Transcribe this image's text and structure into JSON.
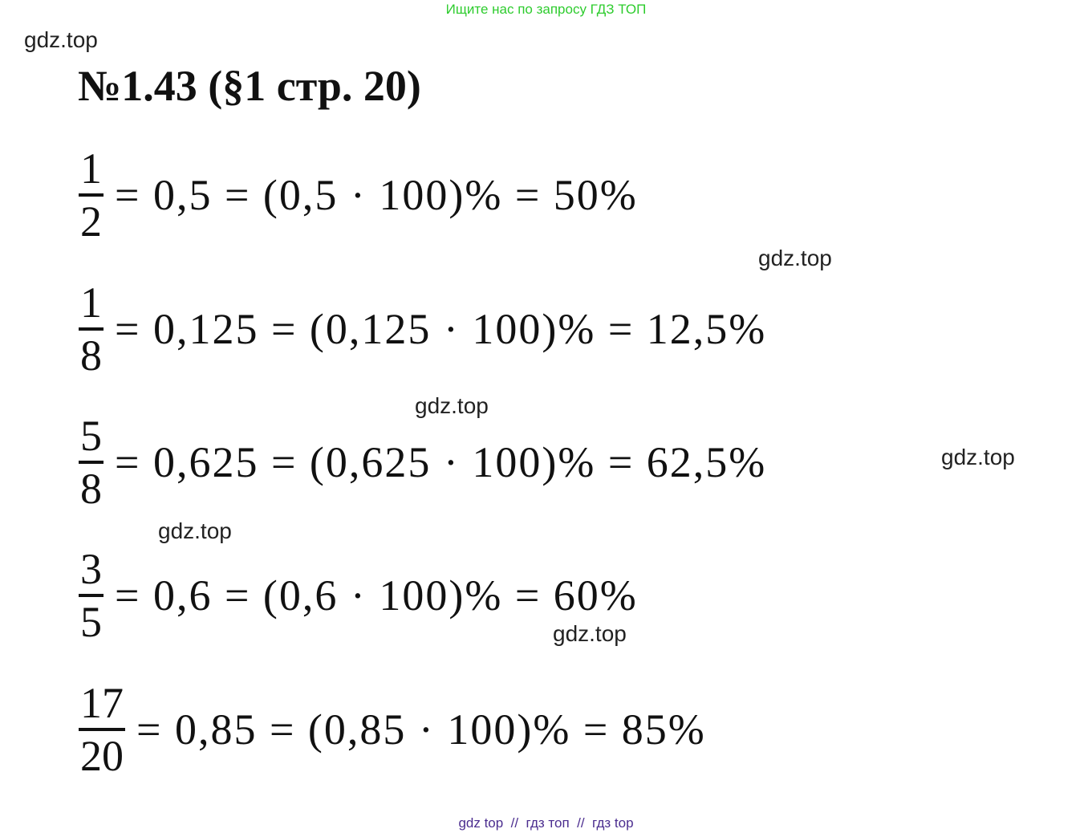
{
  "banner": "Ищите нас по запросу ГДЗ ТОП",
  "title": "№1.43 (§1 стр. 20)",
  "watermarks": [
    "gdz.top",
    "gdz.top",
    "gdz.top",
    "gdz.top",
    "gdz.top",
    "gdz.top"
  ],
  "equations": [
    {
      "numerator": "1",
      "denominator": "2",
      "rest": "= 0,5 = (0,5 · 100)% = 50%"
    },
    {
      "numerator": "1",
      "denominator": "8",
      "rest": "= 0,125 = (0,125 · 100)% = 12,5%"
    },
    {
      "numerator": "5",
      "denominator": "8",
      "rest": "= 0,625 = (0,625 · 100)% = 62,5%"
    },
    {
      "numerator": "3",
      "denominator": "5",
      "rest": "= 0,6 = (0,6 · 100)% = 60%"
    },
    {
      "numerator": "17",
      "denominator": "20",
      "rest": "= 0,85 = (0,85 · 100)% = 85%"
    }
  ],
  "footer": "gdz top  //  гдз топ  //  гдз top"
}
